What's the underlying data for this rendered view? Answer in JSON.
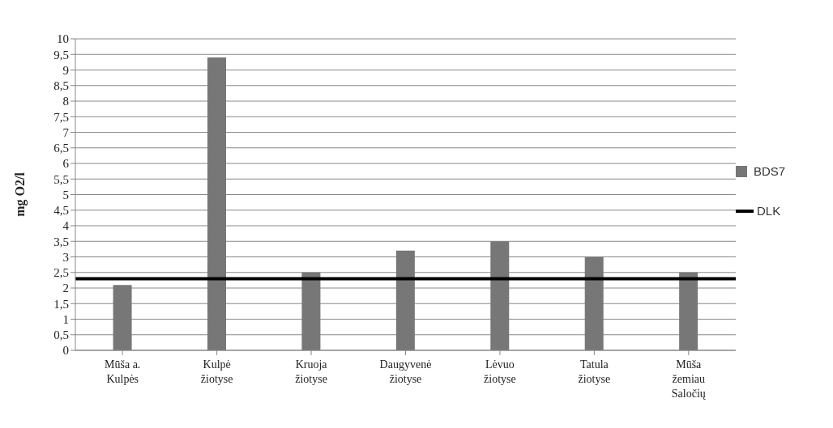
{
  "chart_data": {
    "type": "bar",
    "ylabel": "mg O2/l",
    "categories": [
      "Mūša a. Kulpės",
      "Kulpė žiotyse",
      "Kruoja žiotyse",
      "Daugyvenė žiotyse",
      "Lėvuo žiotyse",
      "Tatula žiotyse",
      "Mūša žemiau Saločių"
    ],
    "series": [
      {
        "name": "BDS7",
        "color": "#777777",
        "values": [
          2.1,
          9.4,
          2.5,
          3.2,
          3.5,
          3.0,
          2.5
        ]
      }
    ],
    "ylim": [
      0,
      10
    ],
    "yticks": [
      0,
      {
        "value": 0.5,
        "label": "0,5"
      },
      1,
      {
        "value": 1.5,
        "label": "1,5"
      },
      2,
      {
        "value": 2.5,
        "label": "2,5"
      },
      3,
      {
        "value": 3.5,
        "label": "3,5"
      },
      4,
      {
        "value": 4.5,
        "label": "4,5"
      },
      5,
      {
        "value": 5.5,
        "label": "5,5"
      },
      6,
      {
        "value": 6.5,
        "label": "6,5"
      },
      7,
      {
        "value": 7.5,
        "label": "7,5"
      },
      8,
      {
        "value": 8.5,
        "label": "8,5"
      },
      9,
      {
        "value": 9.5,
        "label": "9,5"
      },
      10
    ],
    "ref_lines": [
      {
        "axis": "y",
        "value": 2.3,
        "label": "DLK",
        "color": "#000000",
        "line_style": "solid"
      }
    ],
    "grid": "y",
    "legend": "right"
  }
}
